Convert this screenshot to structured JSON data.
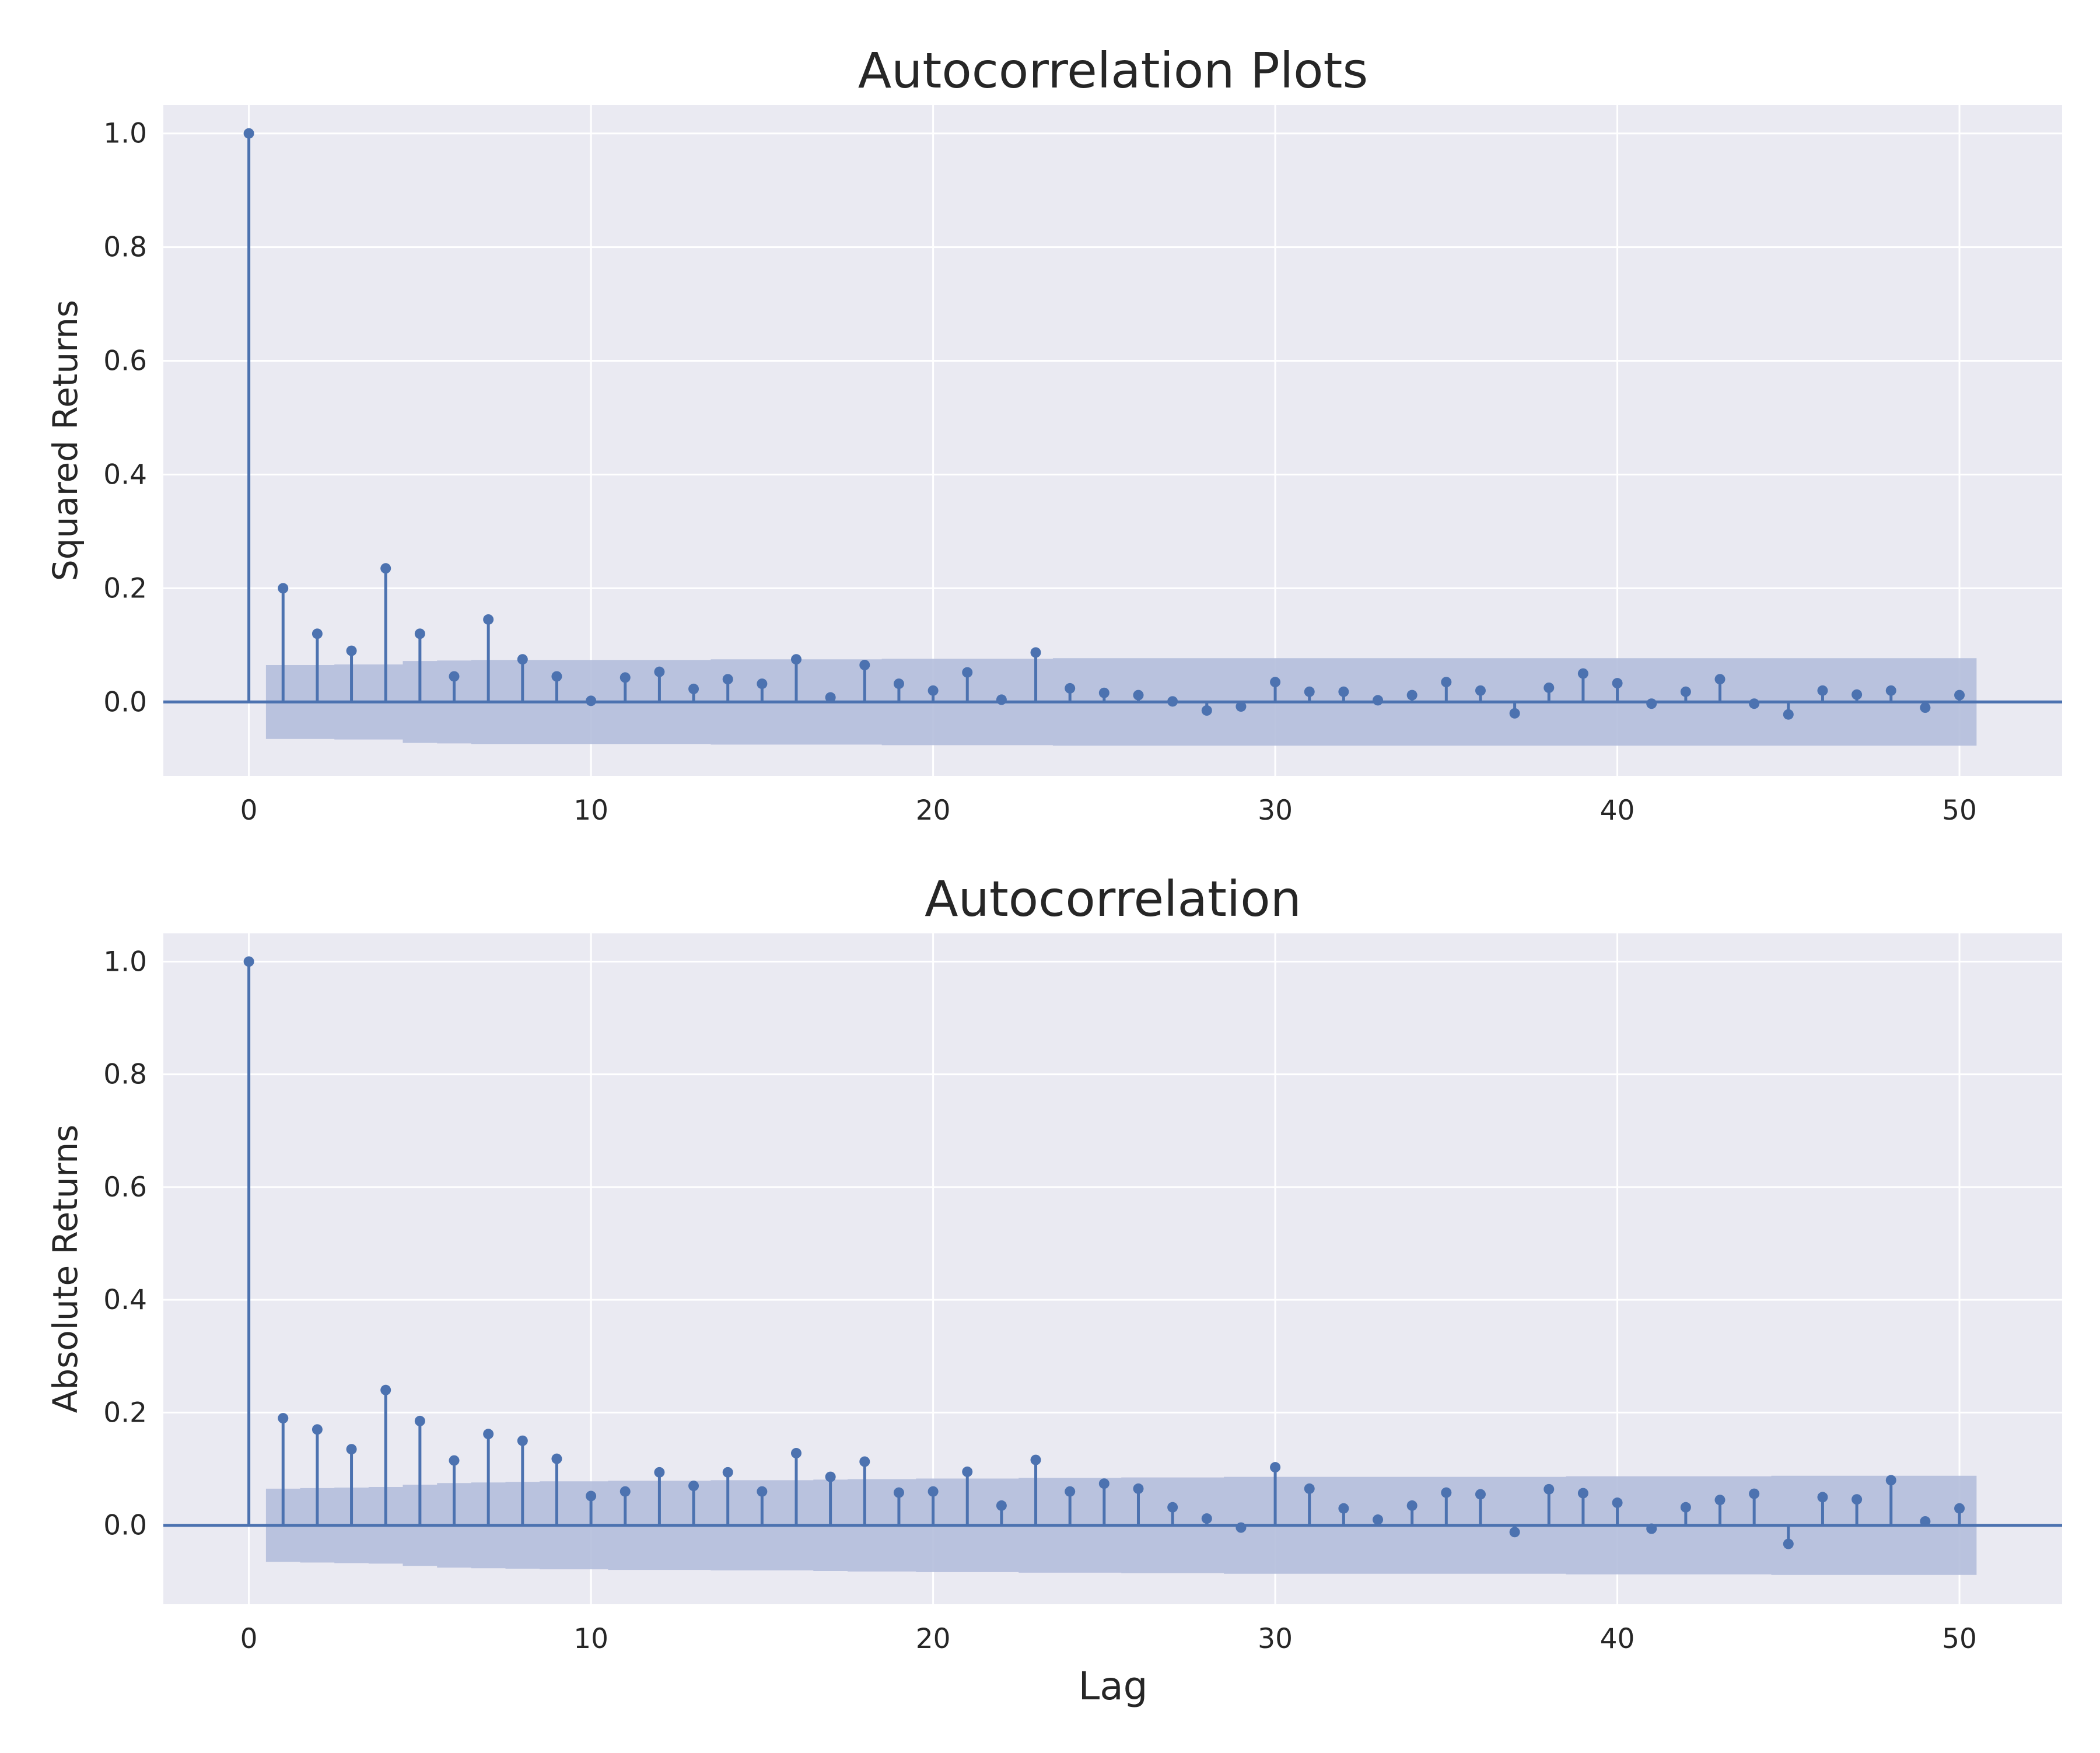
{
  "chart_data": [
    {
      "type": "stem",
      "title": "Autocorrelation Plots",
      "xlabel": "",
      "ylabel": "Squared Returns",
      "xlim": [
        -2.5,
        53
      ],
      "ylim": [
        -0.13,
        1.05
      ],
      "xticks": [
        0,
        10,
        20,
        30,
        40,
        50
      ],
      "xtick_labels": [
        "0",
        "10",
        "20",
        "30",
        "40",
        "50"
      ],
      "yticks": [
        0.0,
        0.2,
        0.4,
        0.6,
        0.8,
        1.0
      ],
      "ytick_labels": [
        "0.0",
        "0.2",
        "0.4",
        "0.6",
        "0.8",
        "1.0"
      ],
      "grid": true,
      "colors": {
        "stem": "#4c72b0",
        "band": "#b4bedc",
        "background": "#eaeaf2"
      },
      "lags": [
        0,
        1,
        2,
        3,
        4,
        5,
        6,
        7,
        8,
        9,
        10,
        11,
        12,
        13,
        14,
        15,
        16,
        17,
        18,
        19,
        20,
        21,
        22,
        23,
        24,
        25,
        26,
        27,
        28,
        29,
        30,
        31,
        32,
        33,
        34,
        35,
        36,
        37,
        38,
        39,
        40,
        41,
        42,
        43,
        44,
        45,
        46,
        47,
        48,
        49,
        50
      ],
      "values": [
        1.0,
        0.2,
        0.12,
        0.09,
        0.235,
        0.12,
        0.045,
        0.145,
        0.075,
        0.045,
        0.002,
        0.043,
        0.053,
        0.023,
        0.04,
        0.032,
        0.075,
        0.008,
        0.065,
        0.032,
        0.02,
        0.052,
        0.004,
        0.087,
        0.024,
        0.016,
        0.012,
        0.001,
        -0.015,
        -0.008,
        0.035,
        0.018,
        0.018,
        0.003,
        0.012,
        0.035,
        0.02,
        -0.02,
        0.025,
        0.05,
        0.033,
        -0.003,
        0.018,
        0.04,
        -0.003,
        -0.022,
        0.02,
        0.013,
        0.02,
        -0.01,
        0.012
      ],
      "conf_band": [
        0.065,
        0.065,
        0.066,
        0.066,
        0.072,
        0.073,
        0.074,
        0.074,
        0.074,
        0.074,
        0.074,
        0.074,
        0.074,
        0.075,
        0.075,
        0.075,
        0.075,
        0.075,
        0.076,
        0.076,
        0.076,
        0.076,
        0.076,
        0.077,
        0.077,
        0.077,
        0.077,
        0.077,
        0.077,
        0.077,
        0.077,
        0.077,
        0.077,
        0.077,
        0.077,
        0.077,
        0.077,
        0.077,
        0.077,
        0.077,
        0.077,
        0.077,
        0.077,
        0.077,
        0.077,
        0.077,
        0.077,
        0.077,
        0.077,
        0.077
      ]
    },
    {
      "type": "stem",
      "title": "Autocorrelation",
      "xlabel": "Lag",
      "ylabel": "Absolute Returns",
      "xlim": [
        -2.5,
        53
      ],
      "ylim": [
        -0.14,
        1.05
      ],
      "xticks": [
        0,
        10,
        20,
        30,
        40,
        50
      ],
      "xtick_labels": [
        "0",
        "10",
        "20",
        "30",
        "40",
        "50"
      ],
      "yticks": [
        0.0,
        0.2,
        0.4,
        0.6,
        0.8,
        1.0
      ],
      "ytick_labels": [
        "0.0",
        "0.2",
        "0.4",
        "0.6",
        "0.8",
        "1.0"
      ],
      "grid": true,
      "colors": {
        "stem": "#4c72b0",
        "band": "#b4bedc",
        "background": "#eaeaf2"
      },
      "lags": [
        0,
        1,
        2,
        3,
        4,
        5,
        6,
        7,
        8,
        9,
        10,
        11,
        12,
        13,
        14,
        15,
        16,
        17,
        18,
        19,
        20,
        21,
        22,
        23,
        24,
        25,
        26,
        27,
        28,
        29,
        30,
        31,
        32,
        33,
        34,
        35,
        36,
        37,
        38,
        39,
        40,
        41,
        42,
        43,
        44,
        45,
        46,
        47,
        48,
        49,
        50
      ],
      "values": [
        1.0,
        0.19,
        0.17,
        0.135,
        0.24,
        0.185,
        0.115,
        0.162,
        0.15,
        0.118,
        0.052,
        0.06,
        0.094,
        0.07,
        0.094,
        0.06,
        0.128,
        0.086,
        0.113,
        0.058,
        0.06,
        0.095,
        0.035,
        0.116,
        0.06,
        0.074,
        0.065,
        0.032,
        0.012,
        -0.004,
        0.103,
        0.065,
        0.03,
        0.01,
        0.035,
        0.058,
        0.055,
        -0.012,
        0.064,
        0.057,
        0.04,
        -0.006,
        0.032,
        0.045,
        0.056,
        -0.033,
        0.05,
        0.046,
        0.08,
        0.007,
        0.03
      ],
      "conf_band": [
        0.065,
        0.066,
        0.067,
        0.068,
        0.072,
        0.075,
        0.076,
        0.077,
        0.078,
        0.078,
        0.079,
        0.079,
        0.079,
        0.08,
        0.08,
        0.08,
        0.081,
        0.082,
        0.082,
        0.083,
        0.083,
        0.083,
        0.084,
        0.084,
        0.084,
        0.085,
        0.085,
        0.085,
        0.086,
        0.086,
        0.086,
        0.086,
        0.086,
        0.086,
        0.086,
        0.086,
        0.086,
        0.086,
        0.087,
        0.087,
        0.087,
        0.087,
        0.087,
        0.087,
        0.088,
        0.088,
        0.088,
        0.088,
        0.088,
        0.088
      ]
    }
  ]
}
